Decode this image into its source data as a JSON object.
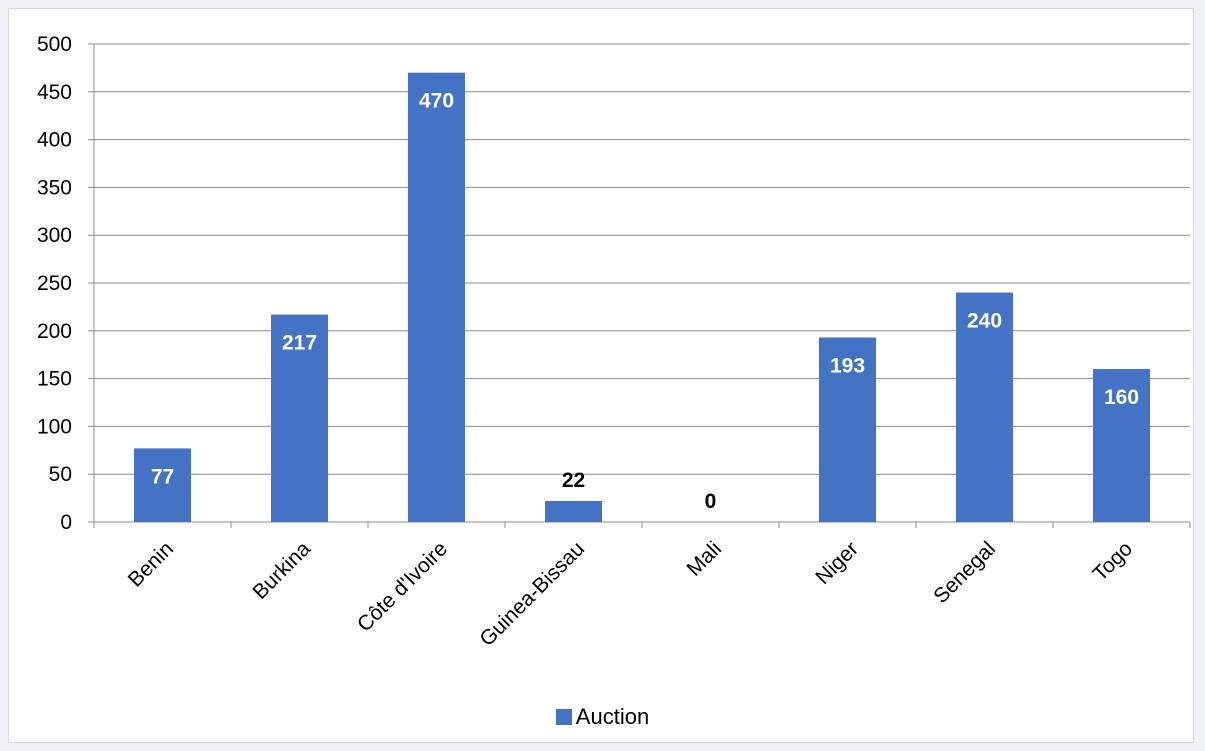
{
  "colors": {
    "bar": "#4472C4",
    "grid": "#8c8c8c",
    "inside_label": "#ffffff",
    "outside_label": "#000000"
  },
  "chart_data": {
    "type": "bar",
    "title": "",
    "xlabel": "",
    "ylabel": "",
    "categories": [
      "Benin",
      "Burkina",
      "Côte d'Ivoire",
      "Guinea-Bissau",
      "Mali",
      "Niger",
      "Senegal",
      "Togo"
    ],
    "series": [
      {
        "name": "Auction",
        "values": [
          77,
          217,
          470,
          22,
          0,
          193,
          240,
          160
        ]
      }
    ],
    "ylim": [
      0,
      500
    ],
    "yticks": [
      0,
      50,
      100,
      150,
      200,
      250,
      300,
      350,
      400,
      450,
      500
    ],
    "grid": true,
    "legend": "bottom"
  }
}
